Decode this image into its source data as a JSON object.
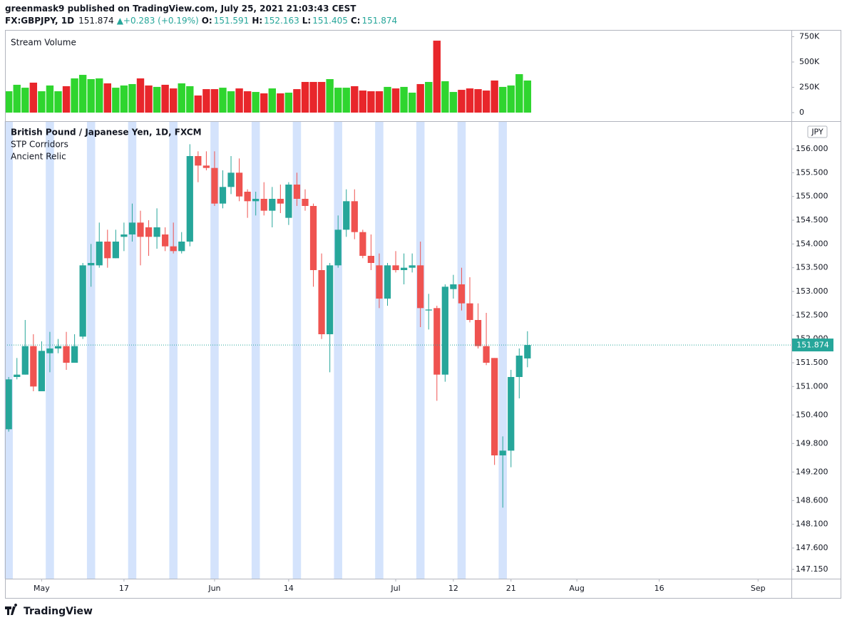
{
  "header": {
    "published": "greenmask9 published on TradingView.com, July 25, 2021 21:03:43 CEST",
    "symbol": "FX:GBPJPY, 1D",
    "change": "+0.283 (+0.19%)",
    "open_label": "O:",
    "high_label": "H:",
    "low_label": "L:",
    "close_label": "C:",
    "currency": "JPY",
    "logo": "TradingView"
  },
  "chart_data": [
    {
      "type": "bar",
      "title": "Stream Volume",
      "up_color": "#2fd52f",
      "down_color": "#e8262b",
      "values": [
        211000,
        275000,
        246000,
        296000,
        211000,
        268000,
        211000,
        261000,
        338000,
        373000,
        331000,
        338000,
        289000,
        246000,
        268000,
        282000,
        338000,
        268000,
        254000,
        275000,
        239000,
        289000,
        261000,
        169000,
        232000,
        232000,
        246000,
        211000,
        239000,
        211000,
        204000,
        190000,
        239000,
        190000,
        197000,
        232000,
        303000,
        303000,
        303000,
        331000,
        246000,
        246000,
        261000,
        218000,
        211000,
        211000,
        254000,
        239000,
        254000,
        197000,
        282000,
        303000,
        711000,
        310000,
        204000,
        225000,
        239000,
        232000,
        218000,
        317000,
        254000,
        268000,
        380000,
        317000
      ],
      "ylim": [
        -84500,
        817000
      ],
      "yticks": [
        0,
        {
          "value": 250000,
          "label": "250K"
        },
        {
          "value": 500000,
          "label": "500K"
        },
        {
          "value": 750000,
          "label": "750K"
        }
      ]
    },
    {
      "type": "candlestick",
      "title": "British Pound / Japanese Yen, 1D, FXCM",
      "indicators": [
        "STP Corridors",
        "Ancient Relic"
      ],
      "up_color": "#26a69a",
      "down_color": "#ef5350",
      "band_color": "#d4e3fc",
      "open": [
        150.1,
        151.2,
        151.25,
        151.85,
        150.9,
        151.7,
        151.8,
        151.85,
        151.5,
        152.05,
        153.55,
        153.55,
        154.05,
        153.7,
        154.15,
        154.2,
        154.45,
        154.35,
        154.15,
        154.2,
        153.95,
        153.85,
        154.05,
        155.85,
        155.65,
        155.6,
        154.85,
        155.2,
        155.5,
        155.1,
        154.9,
        154.95,
        154.7,
        154.95,
        154.55,
        155.25,
        154.95,
        154.8,
        153.45,
        152.1,
        153.55,
        154.3,
        154.9,
        154.25,
        153.75,
        153.55,
        152.85,
        153.55,
        153.45,
        153.5,
        153.55,
        152.6,
        152.65,
        151.25,
        153.05,
        153.15,
        152.75,
        152.4,
        151.85,
        151.6,
        149.55,
        149.65,
        151.2,
        151.591
      ],
      "high": [
        151.2,
        151.6,
        152.4,
        152.1,
        151.95,
        152.15,
        152.0,
        152.15,
        152.1,
        153.6,
        154.0,
        154.45,
        154.3,
        154.3,
        154.45,
        154.85,
        154.7,
        154.5,
        154.75,
        154.35,
        154.45,
        154.25,
        156.1,
        155.95,
        155.95,
        155.95,
        155.55,
        155.85,
        155.8,
        155.15,
        155.1,
        155.3,
        155.2,
        155.25,
        155.3,
        155.5,
        155.15,
        154.85,
        153.8,
        153.6,
        154.6,
        155.15,
        155.15,
        154.3,
        154.2,
        153.8,
        153.6,
        153.85,
        153.8,
        153.8,
        154.05,
        152.95,
        152.7,
        153.15,
        153.35,
        153.5,
        153.3,
        152.75,
        152.55,
        151.6,
        149.95,
        151.35,
        151.8,
        152.163
      ],
      "low": [
        150.05,
        151.15,
        151.25,
        150.9,
        150.9,
        151.3,
        151.7,
        151.35,
        151.5,
        152.0,
        153.1,
        153.5,
        153.5,
        153.7,
        153.85,
        154.05,
        153.55,
        153.75,
        153.9,
        153.85,
        153.8,
        153.8,
        153.95,
        155.3,
        155.55,
        154.8,
        154.75,
        155.05,
        154.9,
        154.55,
        154.6,
        154.6,
        154.35,
        154.65,
        154.4,
        154.8,
        154.7,
        153.1,
        152.0,
        151.3,
        153.5,
        154.15,
        154.1,
        153.7,
        153.45,
        152.65,
        152.7,
        153.4,
        153.15,
        153.4,
        152.25,
        152.2,
        150.7,
        151.1,
        152.85,
        152.6,
        152.35,
        151.8,
        151.45,
        149.35,
        148.45,
        149.3,
        150.75,
        151.405
      ],
      "close": [
        151.15,
        151.25,
        151.85,
        151.0,
        151.75,
        151.8,
        151.85,
        151.5,
        151.85,
        153.55,
        153.6,
        154.05,
        153.7,
        154.05,
        154.2,
        154.45,
        154.15,
        154.15,
        154.35,
        153.95,
        153.85,
        154.05,
        155.85,
        155.65,
        155.6,
        154.85,
        155.2,
        155.5,
        155.0,
        154.9,
        154.95,
        154.7,
        154.95,
        154.85,
        155.25,
        154.95,
        154.8,
        153.45,
        152.1,
        153.55,
        154.3,
        154.9,
        154.25,
        153.75,
        153.6,
        152.85,
        153.55,
        153.45,
        153.5,
        153.55,
        152.65,
        152.62,
        151.25,
        153.1,
        153.15,
        152.75,
        152.4,
        151.85,
        151.5,
        149.55,
        149.65,
        151.2,
        151.65,
        151.874
      ],
      "xlim": [
        -0.45,
        95.05
      ],
      "xticks": [
        {
          "value": 4,
          "label": "May"
        },
        {
          "value": 14,
          "label": "17"
        },
        {
          "value": 25,
          "label": "Jun"
        },
        {
          "value": 34,
          "label": "14"
        },
        {
          "value": 47,
          "label": "Jul"
        },
        {
          "value": 54,
          "label": "12"
        },
        {
          "value": 61,
          "label": "21"
        },
        {
          "value": 69,
          "label": "Aug"
        },
        {
          "value": 79,
          "label": "16"
        },
        {
          "value": 91,
          "label": "Sep"
        }
      ],
      "ylim": [
        146.955,
        156.585
      ],
      "yticks": [
        {
          "value": 147.15,
          "label": "147.150"
        },
        {
          "value": 147.6,
          "label": "147.600"
        },
        {
          "value": 148.1,
          "label": "148.100"
        },
        {
          "value": 148.6,
          "label": "148.600"
        },
        {
          "value": 149.2,
          "label": "149.200"
        },
        {
          "value": 149.8,
          "label": "149.800"
        },
        {
          "value": 150.4,
          "label": "150.400"
        },
        {
          "value": 151,
          "label": "151.000"
        },
        {
          "value": 151.5,
          "label": "151.500"
        },
        {
          "value": 152,
          "label": "152.000"
        },
        {
          "value": 152.5,
          "label": "152.500"
        },
        {
          "value": 153,
          "label": "153.000"
        },
        {
          "value": 153.5,
          "label": "153.500"
        },
        {
          "value": 154,
          "label": "154.000"
        },
        {
          "value": 154.5,
          "label": "154.500"
        },
        {
          "value": 155,
          "label": "155.000"
        },
        {
          "value": 155.5,
          "label": "155.500"
        },
        {
          "value": 156,
          "label": "156.000"
        }
      ]
    }
  ]
}
